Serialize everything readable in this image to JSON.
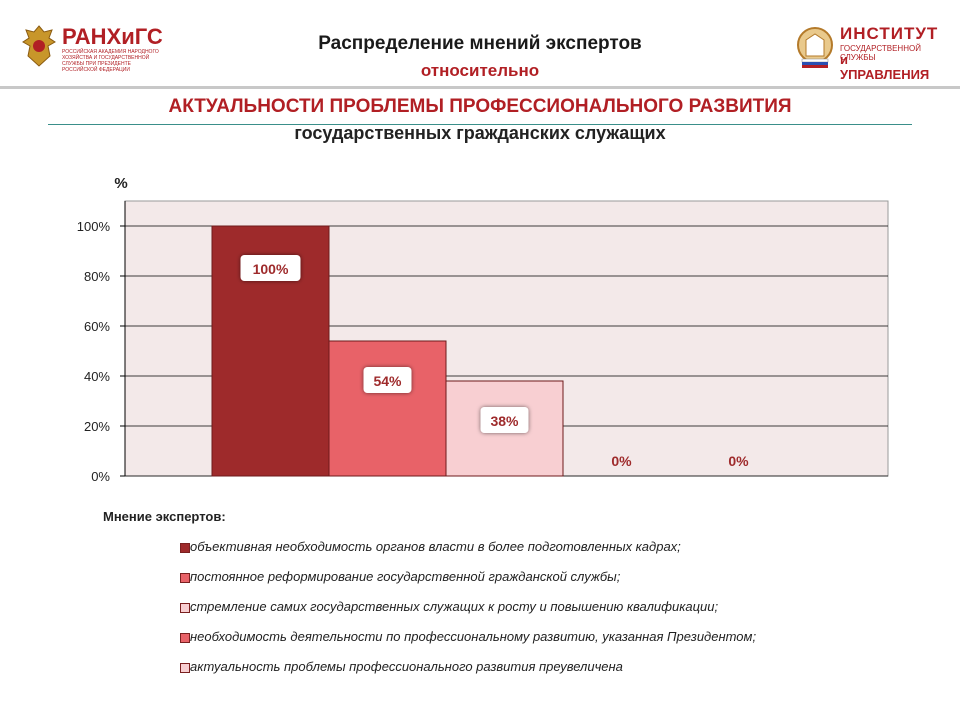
{
  "header": {
    "logo_left_text": "РАНХиГС",
    "logo_left_subtitle": "РОССИЙСКАЯ АКАДЕМИЯ НАРОДНОГО ХОЗЯЙСТВА И ГОСУДАРСТВЕННОЙ СЛУЖБЫ ПРИ ПРЕЗИДЕНТЕ РОССИЙСКОЙ ФЕДЕРАЦИИ",
    "logo_right_line1": "ИНСТИТУТ",
    "logo_right_line2": "ГОСУДАРСТВЕННОЙ СЛУЖБЫ",
    "logo_right_line3": "и УПРАВЛЕНИЯ",
    "title_line1": "Распределение мнений экспертов",
    "title_line2": "относительно",
    "title_line3": "АКТУАЛЬНОСТИ ПРОБЛЕМЫ ПРОФЕССИОНАЛЬНОГО РАЗВИТИЯ",
    "title_line4": "государственных гражданских служащих"
  },
  "colors": {
    "brand_red": "#b11f24",
    "plot_bg": "#f3e9e9",
    "bar_colors": [
      "#9e2a2b",
      "#e86268",
      "#f8cfd2",
      "#e86268",
      "#f8cfd2"
    ]
  },
  "chart_data": {
    "type": "bar",
    "ylabel": "%",
    "ylim": [
      0,
      110
    ],
    "yticks": [
      "0%",
      "20%",
      "40%",
      "60%",
      "80%",
      "100%"
    ],
    "ytick_values": [
      0,
      20,
      40,
      60,
      80,
      100
    ],
    "grid": true,
    "legend_title": "Мнение экспертов:",
    "legend_position": "bottom",
    "series": [
      {
        "name": "объективная необходимость органов власти в более подготовленных кадрах;",
        "value": 100,
        "label": "100%"
      },
      {
        "name": "постоянное реформирование государственной гражданской службы;",
        "value": 54,
        "label": "54%"
      },
      {
        "name": "стремление самих государственных служащих к росту и повышению квалификации;",
        "value": 38,
        "label": "38%"
      },
      {
        "name": "необходимость деятельности по профессиональному развитию, указанная Президентом;",
        "value": 0,
        "label": "0%"
      },
      {
        "name": "актуальность проблемы профессионального развития преувеличена",
        "value": 0,
        "label": "0%"
      }
    ]
  }
}
